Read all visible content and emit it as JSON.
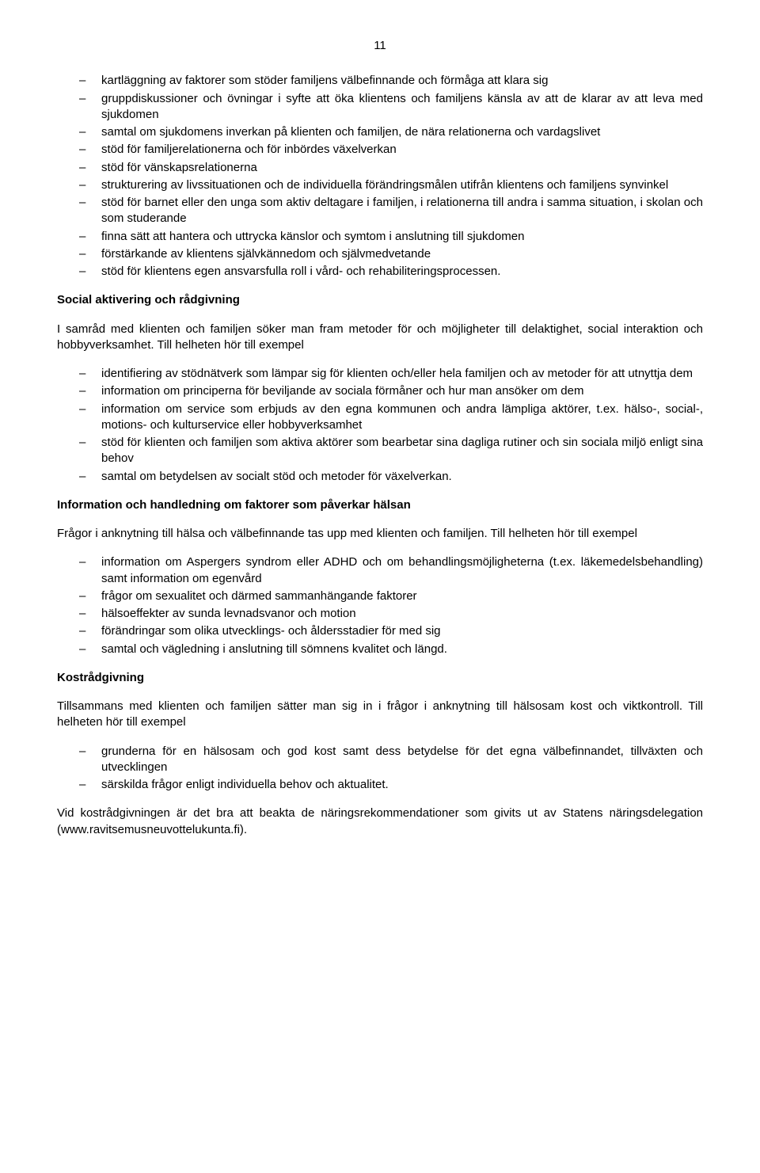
{
  "pageNumber": "11",
  "list1": [
    "kartläggning av faktorer som stöder familjens välbefinnande och förmåga att klara sig",
    "gruppdiskussioner och övningar i syfte att öka klientens och familjens känsla av att de klarar av att leva med sjukdomen",
    "samtal om sjukdomens inverkan på klienten och familjen, de nära relationerna och vardagslivet",
    "stöd för familjerelationerna och för inbördes växelverkan",
    "stöd för vänskapsrelationerna",
    "strukturering av livssituationen och de individuella förändringsmålen utifrån klientens och familjens synvinkel",
    "stöd för barnet eller den unga som aktiv deltagare i familjen, i relationerna till andra i samma situation, i skolan och som studerande",
    "finna sätt att hantera och uttrycka känslor och symtom i anslutning till sjukdomen",
    "förstärkande av klientens självkännedom och självmedvetande",
    "stöd för klientens egen ansvarsfulla roll i vård- och rehabiliteringsprocessen."
  ],
  "heading1": "Social aktivering och rådgivning",
  "para1": "I samråd med klienten och familjen söker man fram metoder för och möjligheter till delaktighet, social interaktion och hobbyverksamhet. Till helheten hör till exempel",
  "list2": [
    "identifiering av stödnätverk som lämpar sig för klienten och/eller hela familjen och av metoder för att utnyttja dem",
    "information om principerna för beviljande av sociala förmåner och hur man ansöker om dem",
    "information om service som erbjuds av den egna kommunen och andra lämpliga aktörer, t.ex. hälso-, social-, motions- och kulturservice eller hobbyverksamhet",
    "stöd för klienten och familjen som aktiva aktörer som bearbetar sina dagliga rutiner och sin sociala miljö enligt sina behov",
    "samtal om betydelsen av socialt stöd och metoder för växelverkan."
  ],
  "heading2": "Information och handledning om faktorer som påverkar hälsan",
  "para2": "Frågor i anknytning till hälsa och välbefinnande tas upp med klienten och familjen. Till helheten hör till exempel",
  "list3": [
    "information om Aspergers syndrom eller ADHD och om behandlingsmöjligheterna (t.ex. läkemedelsbehandling) samt information om egenvård",
    "frågor om sexualitet och därmed sammanhängande faktorer",
    "hälsoeffekter av sunda levnadsvanor och motion",
    "förändringar som olika utvecklings- och åldersstadier för med sig",
    "samtal och vägledning i anslutning till sömnens kvalitet och längd."
  ],
  "heading3": "Kostrådgivning",
  "para3": "Tillsammans med klienten och familjen sätter man sig in i frågor i anknytning till hälsosam kost och viktkontroll. Till helheten hör till exempel",
  "list4": [
    "grunderna för en hälsosam och god kost samt dess betydelse för det egna välbefinnandet, tillväxten och utvecklingen",
    "särskilda frågor enligt individuella behov och aktualitet."
  ],
  "para4": "Vid kostrådgivningen är det bra att beakta de näringsrekommendationer som givits ut av Statens näringsdelegation (www.ravitsemusneuvottelukunta.fi)."
}
